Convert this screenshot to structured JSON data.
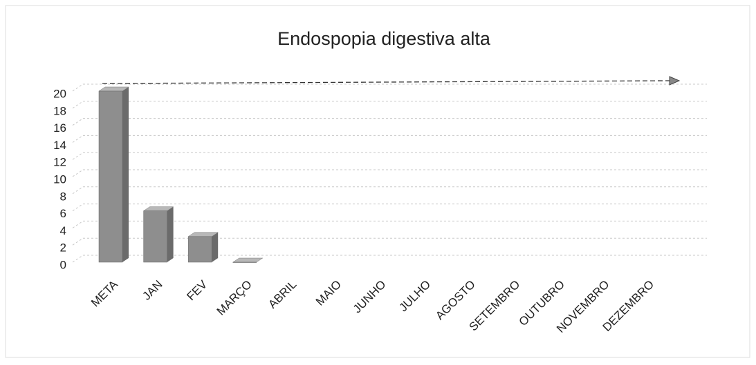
{
  "chart_data": {
    "type": "bar",
    "title": "Endospopia digestiva alta",
    "categories": [
      "META",
      "JAN",
      "FEV",
      "MARÇO",
      "ABRIL",
      "MAIO",
      "JUNHO",
      "JULHO",
      "AGOSTO",
      "SETEMBRO",
      "OUTUBRO",
      "NOVEMBRO",
      "DEZEMBRO"
    ],
    "values": [
      20,
      6,
      3,
      0,
      null,
      null,
      null,
      null,
      null,
      null,
      null,
      null,
      null
    ],
    "color": "#8e8e8e",
    "ylim": [
      0,
      20
    ],
    "yticks": [
      0,
      2,
      4,
      6,
      8,
      10,
      12,
      14,
      16,
      18,
      20
    ],
    "grid": true
  }
}
